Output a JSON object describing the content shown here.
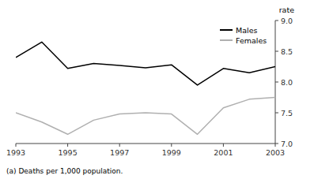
{
  "chart_data": {
    "type": "line",
    "ylabel": "rate",
    "annotations": [
      "(a) Deaths per 1,000 population."
    ],
    "x": [
      1993,
      1994,
      1995,
      1996,
      1997,
      1998,
      1999,
      2000,
      2001,
      2002,
      2003
    ],
    "series": [
      {
        "name": "Males",
        "color": "#000000",
        "values": [
          8.4,
          8.65,
          8.22,
          8.3,
          8.27,
          8.23,
          8.28,
          7.95,
          8.22,
          8.15,
          8.25
        ]
      },
      {
        "name": "Females",
        "color": "#b0b0b0",
        "values": [
          7.5,
          7.35,
          7.15,
          7.38,
          7.48,
          7.5,
          7.48,
          7.15,
          7.58,
          7.72,
          7.75
        ]
      }
    ],
    "xlim": [
      1993,
      2003
    ],
    "xticks": [
      1993,
      1995,
      1997,
      1999,
      2001,
      2003
    ],
    "ylim": [
      7.0,
      9.0
    ],
    "yticks": [
      {
        "value": 7.0,
        "label": "7.0"
      },
      7.5,
      {
        "value": 8.0,
        "label": "8.0"
      },
      8.5,
      {
        "value": 9.0,
        "label": "9.0"
      }
    ],
    "legend": "upper right",
    "grid": false
  }
}
